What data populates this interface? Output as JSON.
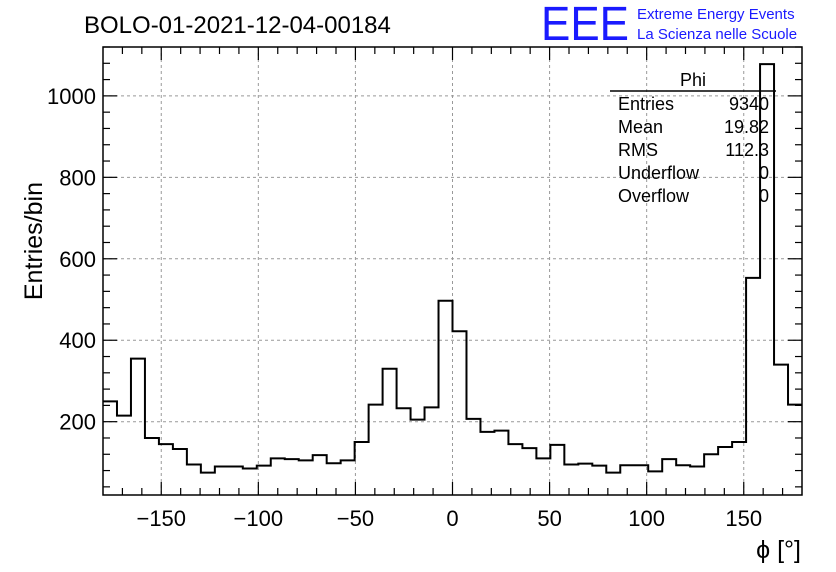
{
  "chart_data": {
    "type": "histogram",
    "title": "BOLO-01-2021-12-04-00184",
    "xlabel": "ϕ [°]",
    "ylabel": "Entries/bin",
    "xlim": [
      -180,
      180
    ],
    "ylim": [
      20,
      1120
    ],
    "bin_width": 7.2,
    "grid": true,
    "x_ticks": [
      -150,
      -100,
      -50,
      0,
      50,
      100,
      150
    ],
    "y_ticks": [
      200,
      400,
      600,
      800,
      1000
    ],
    "bins": {
      "edges_start": -180,
      "values": [
        250,
        215,
        355,
        160,
        145,
        133,
        95,
        75,
        90,
        90,
        85,
        92,
        110,
        108,
        105,
        118,
        98,
        105,
        150,
        242,
        330,
        233,
        205,
        235,
        497,
        422,
        207,
        175,
        178,
        145,
        135,
        110,
        143,
        95,
        97,
        92,
        75,
        93,
        93,
        78,
        108,
        93,
        90,
        120,
        138,
        150,
        553,
        1078,
        340,
        242
      ]
    },
    "stats_box": {
      "title": "Phi",
      "rows": [
        {
          "label": "Entries",
          "value": "9340"
        },
        {
          "label": "Mean",
          "value": "19.82"
        },
        {
          "label": "RMS",
          "value": "112.3"
        },
        {
          "label": "Underflow",
          "value": "0"
        },
        {
          "label": "Overflow",
          "value": "0"
        }
      ]
    },
    "colors": {
      "line": "#000000",
      "grid": "#999999",
      "logo": "#1a1aff"
    }
  },
  "logo": {
    "mark": "EEE",
    "line1": "Extreme Energy Events",
    "line2": "La Scienza nelle Scuole"
  }
}
